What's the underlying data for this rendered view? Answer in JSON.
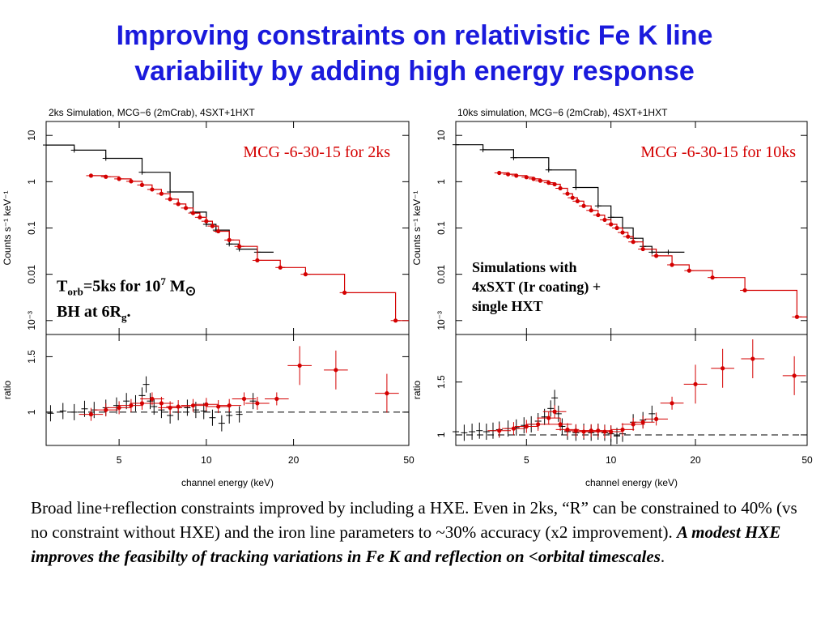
{
  "slide": {
    "title_line1": "Improving constraints on relativistic Fe K line",
    "title_line2": "variability by adding high energy response",
    "caption_plain": "Broad line+reflection constraints improved by including a HXE. Even in 2ks, “R” can be constrained to 40% (vs no constraint without HXE) and the iron line parameters to ~30% accuracy (x2 improvement). ",
    "caption_emph": "A modest HXE improves the feasibilty of tracking variations in Fe K and reflection on <orbital timescales",
    "caption_end": ".",
    "left_note": {
      "t": "T",
      "orb": "orb",
      "mid": "=5ks for 10",
      "exp": "7",
      "m": " M",
      "sun": "⊙",
      "line2a": "BH at 6R",
      "g": "g",
      "line2b": "."
    },
    "right_note": {
      "line1": "Simulations with",
      "line2": "4xSXT (Ir coating) +",
      "line3": "single HXT"
    }
  },
  "colors": {
    "title": "#1a1adc",
    "model": "#d40000",
    "data": "#000000"
  },
  "chart_data": [
    {
      "type": "scatter",
      "title": "2ks Simulation, MCG−6 (2mCrab), 4SXT+1HXT",
      "overlay_label": "MCG -6-30-15 for 2ks",
      "xlabel": "channel energy (keV)",
      "ylabel_top": "Counts s⁻¹ keV⁻¹",
      "ylabel_bottom": "ratio",
      "xscale": "log",
      "xlim": [
        2.8,
        50
      ],
      "xticks": [
        5,
        10,
        20,
        50
      ],
      "xtick_labels": [
        "5",
        "10",
        "20",
        "50"
      ],
      "top": {
        "yscale": "log",
        "ylim": [
          0.0005,
          20
        ],
        "yticks": [
          10,
          1,
          0.1,
          0.01,
          0.001
        ],
        "ytick_labels": [
          "10",
          "1",
          "0.1",
          "0.01",
          "10⁻³"
        ],
        "series": [
          {
            "color": "black",
            "x": [
              2.8,
              3.5,
              4.5,
              6,
              7.5,
              9,
              10,
              10.8,
              12,
              13,
              15
            ],
            "y": [
              6.2,
              4.8,
              3.2,
              1.6,
              0.6,
              0.22,
              0.12,
              0.09,
              0.045,
              0.035,
              0.03
            ]
          },
          {
            "color": "red",
            "x": [
              4,
              4.5,
              5,
              5.5,
              6,
              6.5,
              7,
              7.5,
              8,
              8.5,
              9,
              9.5,
              10,
              10.5,
              11,
              12,
              13,
              15,
              18,
              22,
              30,
              45
            ],
            "y": [
              1.35,
              1.28,
              1.15,
              1.02,
              0.85,
              0.68,
              0.55,
              0.42,
              0.33,
              0.27,
              0.21,
              0.17,
              0.14,
              0.11,
              0.085,
              0.055,
              0.04,
              0.02,
              0.014,
              0.01,
              0.004,
              0.001
            ]
          }
        ]
      },
      "bottom": {
        "ylim": [
          0.7,
          1.7
        ],
        "yticks": [
          1,
          1.5
        ],
        "ytick_labels": [
          "1",
          "1.5"
        ],
        "reference_line": 1,
        "series": [
          {
            "color": "black",
            "x": [
              2.9,
              3.2,
              3.5,
              3.8,
              4.1,
              4.5,
              4.9,
              5.3,
              5.7,
              6.0,
              6.2,
              6.4,
              6.6,
              7.0,
              7.5,
              8.0,
              8.6,
              9.2,
              9.8,
              10.5,
              11.3,
              12.0,
              13.0,
              14.5
            ],
            "y": [
              0.99,
              1.01,
              1.0,
              1.03,
              1.02,
              1.04,
              1.06,
              1.1,
              1.08,
              1.15,
              1.25,
              1.1,
              1.05,
              1.02,
              0.97,
              1.0,
              1.04,
              1.02,
              1.01,
              0.95,
              0.9,
              0.97,
              0.98,
              1.1
            ]
          },
          {
            "color": "red",
            "x": [
              4,
              4.5,
              5,
              5.5,
              6,
              6.5,
              7,
              7.5,
              8,
              9,
              10,
              11,
              12,
              13.5,
              15,
              17.5,
              21,
              28,
              42
            ],
            "y": [
              0.98,
              1.02,
              1.04,
              1.06,
              1.08,
              1.12,
              1.08,
              1.04,
              1.05,
              1.06,
              1.07,
              1.05,
              1.06,
              1.12,
              1.08,
              1.12,
              1.42,
              1.38,
              1.17
            ]
          }
        ]
      }
    },
    {
      "type": "scatter",
      "title": "10ks simulation, MCG−6 (2mCrab), 4SXT+1HXT",
      "overlay_label": "MCG -6-30-15 for 10ks",
      "xlabel": "channel energy (keV)",
      "ylabel_top": "Counts s⁻¹ keV⁻¹",
      "ylabel_bottom": "ratio",
      "xscale": "log",
      "xlim": [
        2.8,
        50
      ],
      "xticks": [
        5,
        10,
        20,
        50
      ],
      "xtick_labels": [
        "5",
        "10",
        "20",
        "50"
      ],
      "top": {
        "yscale": "log",
        "ylim": [
          0.0005,
          20
        ],
        "yticks": [
          10,
          1,
          0.1,
          0.01,
          0.001
        ],
        "ytick_labels": [
          "10",
          "1",
          "0.1",
          "0.01",
          "10⁻³"
        ],
        "series": [
          {
            "color": "black",
            "x": [
              2.8,
              3.5,
              4.5,
              6,
              7.5,
              9,
              10,
              11,
              12,
              13,
              14,
              16
            ],
            "y": [
              6.3,
              4.9,
              3.3,
              1.8,
              0.75,
              0.3,
              0.17,
              0.1,
              0.06,
              0.04,
              0.03,
              0.03
            ]
          },
          {
            "color": "red",
            "x": [
              4,
              4.3,
              4.6,
              5,
              5.3,
              5.6,
              6,
              6.3,
              6.6,
              7,
              7.3,
              7.6,
              8,
              8.5,
              9,
              9.5,
              10,
              10.5,
              11,
              11.5,
              12,
              13,
              14.5,
              16.5,
              19,
              23,
              30,
              46
            ],
            "y": [
              1.55,
              1.45,
              1.35,
              1.25,
              1.15,
              1.05,
              0.95,
              0.88,
              0.72,
              0.55,
              0.45,
              0.38,
              0.3,
              0.24,
              0.19,
              0.15,
              0.12,
              0.1,
              0.08,
              0.065,
              0.05,
              0.035,
              0.025,
              0.016,
              0.012,
              0.0085,
              0.0045,
              0.0012
            ]
          }
        ]
      },
      "bottom": {
        "ylim": [
          0.9,
          1.95
        ],
        "yticks": [
          1,
          1.5
        ],
        "ytick_labels": [
          "1",
          "1.5"
        ],
        "reference_line": 1,
        "series": [
          {
            "color": "black",
            "x": [
              2.8,
              3.0,
              3.2,
              3.4,
              3.6,
              3.8,
              4.0,
              4.3,
              4.6,
              4.9,
              5.2,
              5.5,
              5.8,
              6.1,
              6.3,
              6.5,
              6.7,
              7.0,
              7.5,
              8.0,
              8.5,
              9.0,
              9.5,
              10.0,
              10.5,
              11.0,
              12.0,
              13.0,
              14.0
            ],
            "y": [
              1.03,
              1.02,
              1.03,
              1.04,
              1.03,
              1.04,
              1.05,
              1.06,
              1.07,
              1.09,
              1.1,
              1.13,
              1.17,
              1.25,
              1.35,
              1.2,
              1.08,
              1.03,
              1.02,
              1.03,
              1.02,
              1.03,
              1.02,
              1.01,
              0.99,
              1.01,
              1.12,
              1.14,
              1.2
            ]
          },
          {
            "color": "red",
            "x": [
              4,
              4.5,
              5,
              5.5,
              6,
              6.3,
              6.6,
              7,
              7.5,
              8,
              8.5,
              9,
              9.5,
              10,
              11,
              12,
              13,
              14.5,
              16.5,
              20,
              25,
              32,
              45
            ],
            "y": [
              1.04,
              1.06,
              1.08,
              1.1,
              1.16,
              1.22,
              1.1,
              1.05,
              1.04,
              1.03,
              1.04,
              1.04,
              1.03,
              1.03,
              1.05,
              1.1,
              1.12,
              1.15,
              1.3,
              1.48,
              1.63,
              1.72,
              1.56
            ]
          }
        ]
      }
    }
  ]
}
